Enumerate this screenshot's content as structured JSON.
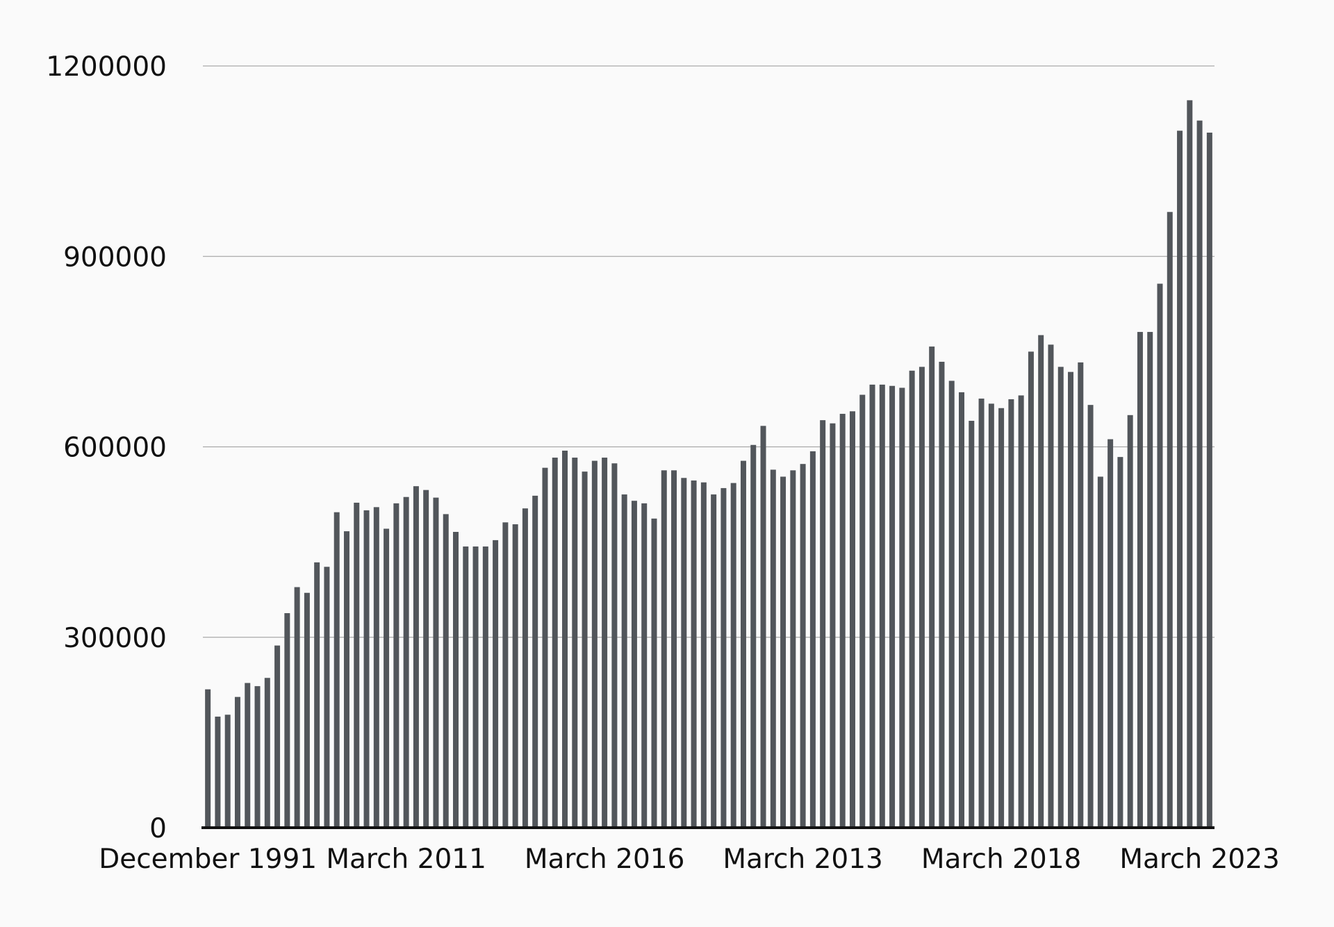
{
  "chart_data": {
    "type": "bar",
    "title": "",
    "xlabel": "",
    "ylabel": "",
    "ylim": [
      0,
      1200000
    ],
    "grid": true,
    "yticks": [
      0,
      300000,
      600000,
      900000,
      1200000
    ],
    "ytick_labels": [
      "0",
      "300000",
      "600000",
      "900000",
      "1200000"
    ],
    "xtick_labels": [
      {
        "index": 0,
        "label": "December 1991"
      },
      {
        "index": 20,
        "label": "March 2011"
      },
      {
        "index": 40,
        "label": "March 2016"
      },
      {
        "index": 60,
        "label": "March 2013"
      },
      {
        "index": 80,
        "label": "March 2018"
      },
      {
        "index": 100,
        "label": "March 2023"
      }
    ],
    "bar_color": "#52565b",
    "series": [
      {
        "values": [
          218000,
          175000,
          178000,
          206000,
          228000,
          223000,
          236000,
          287000,
          338000,
          379000,
          370000,
          418000,
          411000,
          497000,
          467000,
          512000,
          500000,
          505000,
          471000,
          511000,
          521000,
          538000,
          532000,
          520000,
          494000,
          466000,
          443000,
          443000,
          443000,
          453000,
          481000,
          478000,
          503000,
          523000,
          567000,
          583000,
          594000,
          583000,
          561000,
          578000,
          583000,
          574000,
          525000,
          515000,
          511000,
          487000,
          563000,
          563000,
          551000,
          547000,
          544000,
          525000,
          535000,
          543000,
          578000,
          603000,
          633000,
          564000,
          553000,
          563000,
          573000,
          593000,
          642000,
          637000,
          652000,
          656000,
          682000,
          698000,
          698000,
          696000,
          693000,
          720000,
          726000,
          758000,
          734000,
          704000,
          686000,
          641000,
          676000,
          668000,
          661000,
          675000,
          681000,
          750000,
          776000,
          761000,
          726000,
          718000,
          733000,
          666000,
          553000,
          612000,
          584000,
          650000,
          781000,
          781000,
          857000,
          970000,
          1098000,
          1146000,
          1114000,
          1095000
        ]
      }
    ]
  }
}
